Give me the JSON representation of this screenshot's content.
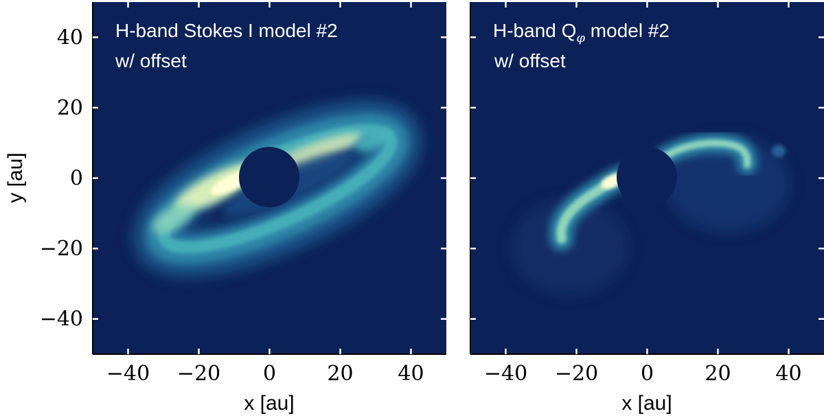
{
  "colors": {
    "background": "#0c2157",
    "colormap": [
      "#0c2157",
      "#14306c",
      "#1f5a8e",
      "#2d86a8",
      "#48b4bb",
      "#8fd6bb",
      "#dff1b9",
      "#ffffd6"
    ],
    "text": "#ffffff"
  },
  "chart_data": [
    {
      "type": "heatmap",
      "title_line1": "H-band Stokes I model #2",
      "title_line2": "w/ offset",
      "xlabel": "x [au]",
      "ylabel": "y [au]",
      "xlim": [
        -50,
        50
      ],
      "ylim": [
        -50,
        50
      ],
      "xticks": [
        -40,
        -20,
        0,
        20,
        40
      ],
      "yticks": [
        -40,
        -20,
        0,
        20,
        40
      ],
      "mask_radius_au": 8.5,
      "features": [
        {
          "kind": "inclined ring",
          "center": [
            2,
            -3
          ],
          "semi_major_au": 36,
          "semi_minor_au": 7,
          "position_angle_deg": 24,
          "peak_intensity": 1.0
        },
        {
          "kind": "brightest arc",
          "center": [
            -10,
            -3
          ],
          "peak_intensity": 1.0
        },
        {
          "kind": "far-side arc",
          "center": [
            10,
            6
          ],
          "peak_intensity": 0.85
        }
      ]
    },
    {
      "type": "heatmap",
      "title_main": "H-band Q",
      "title_sub": "φ",
      "title_rest": " model #2",
      "title_line2": "w/ offset",
      "xlabel": "x [au]",
      "ylabel": "",
      "xlim": [
        -50,
        50
      ],
      "ylim": [
        -50,
        50
      ],
      "xticks": [
        -40,
        -20,
        0,
        20,
        40
      ],
      "yticks": [
        -40,
        -20,
        0,
        20,
        40
      ],
      "mask_radius_au": 8.5,
      "features": [
        {
          "kind": "southern arm",
          "points": [
            [
              -23,
              -18
            ],
            [
              -20,
              -12
            ],
            [
              -15,
              -5
            ],
            [
              -9,
              0
            ]
          ],
          "peak_intensity": 1.0
        },
        {
          "kind": "northern arm",
          "points": [
            [
              8,
              7
            ],
            [
              18,
              10
            ],
            [
              27,
              9
            ],
            [
              29,
              4
            ]
          ],
          "peak_intensity": 0.8
        },
        {
          "kind": "faint blob",
          "center": [
            38,
            7
          ],
          "peak_intensity": 0.3
        },
        {
          "kind": "faint halo",
          "center": [
            25,
            -3
          ],
          "peak_intensity": 0.15
        }
      ]
    }
  ]
}
